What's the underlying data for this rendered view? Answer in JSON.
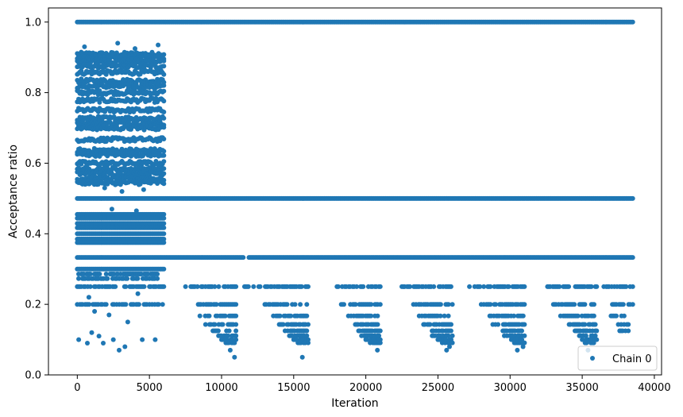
{
  "chart_data": {
    "type": "scatter",
    "title": "",
    "xlabel": "Iteration",
    "ylabel": "Acceptance ratio",
    "xlim": [
      -2000,
      40500
    ],
    "ylim": [
      0.0,
      1.04
    ],
    "xticks": [
      0,
      5000,
      10000,
      15000,
      20000,
      25000,
      30000,
      35000,
      40000
    ],
    "xtick_labels": [
      "0",
      "5000",
      "10000",
      "15000",
      "20000",
      "25000",
      "30000",
      "35000",
      "40000"
    ],
    "yticks": [
      0.0,
      0.2,
      0.4,
      0.6,
      0.8,
      1.0
    ],
    "ytick_labels": [
      "0.0",
      "0.2",
      "0.4",
      "0.6",
      "0.8",
      "1.0"
    ],
    "grid": false,
    "legend": {
      "placement": "lower-right",
      "entries": [
        "Chain 0"
      ]
    },
    "series_color": "#1f77b4",
    "series": [
      {
        "name": "Chain 0",
        "marker": "o",
        "bands": [
          {
            "y": 1.0,
            "x_ranges": [
              [
                0,
                38500
              ]
            ]
          },
          {
            "y": 0.909,
            "x_ranges": [
              [
                0,
                6000
              ]
            ]
          },
          {
            "y": 0.9,
            "x_ranges": [
              [
                0,
                6000
              ]
            ]
          },
          {
            "y": 0.889,
            "x_ranges": [
              [
                0,
                6000
              ]
            ]
          },
          {
            "y": 0.875,
            "x_ranges": [
              [
                0,
                6000
              ]
            ]
          },
          {
            "y": 0.857,
            "x_ranges": [
              [
                0,
                6000
              ]
            ]
          },
          {
            "y": 0.833,
            "x_ranges": [
              [
                0,
                6000
              ]
            ]
          },
          {
            "y": 0.818,
            "x_ranges": [
              [
                0,
                6000
              ]
            ]
          },
          {
            "y": 0.8,
            "x_ranges": [
              [
                0,
                6000
              ]
            ]
          },
          {
            "y": 0.778,
            "x_ranges": [
              [
                0,
                6000
              ]
            ]
          },
          {
            "y": 0.75,
            "x_ranges": [
              [
                0,
                6000
              ]
            ]
          },
          {
            "y": 0.727,
            "x_ranges": [
              [
                0,
                6000
              ]
            ]
          },
          {
            "y": 0.714,
            "x_ranges": [
              [
                0,
                6000
              ]
            ]
          },
          {
            "y": 0.7,
            "x_ranges": [
              [
                0,
                6000
              ]
            ]
          },
          {
            "y": 0.667,
            "x_ranges": [
              [
                0,
                6000
              ]
            ]
          },
          {
            "y": 0.636,
            "x_ranges": [
              [
                0,
                6000
              ]
            ]
          },
          {
            "y": 0.625,
            "x_ranges": [
              [
                0,
                6000
              ]
            ]
          },
          {
            "y": 0.6,
            "x_ranges": [
              [
                0,
                6000
              ]
            ]
          },
          {
            "y": 0.583,
            "x_ranges": [
              [
                0,
                6000
              ]
            ]
          },
          {
            "y": 0.571,
            "x_ranges": [
              [
                0,
                6000
              ]
            ]
          },
          {
            "y": 0.556,
            "x_ranges": [
              [
                0,
                6000
              ]
            ]
          },
          {
            "y": 0.545,
            "x_ranges": [
              [
                0,
                6000
              ]
            ]
          },
          {
            "y": 0.5,
            "x_ranges": [
              [
                0,
                38500
              ]
            ]
          },
          {
            "y": 0.455,
            "x_ranges": [
              [
                0,
                6000
              ]
            ]
          },
          {
            "y": 0.444,
            "x_ranges": [
              [
                0,
                6000
              ]
            ]
          },
          {
            "y": 0.429,
            "x_ranges": [
              [
                0,
                6000
              ]
            ]
          },
          {
            "y": 0.417,
            "x_ranges": [
              [
                0,
                6000
              ]
            ]
          },
          {
            "y": 0.4,
            "x_ranges": [
              [
                0,
                6000
              ]
            ]
          },
          {
            "y": 0.385,
            "x_ranges": [
              [
                0,
                6000
              ]
            ]
          },
          {
            "y": 0.375,
            "x_ranges": [
              [
                0,
                6000
              ]
            ]
          },
          {
            "y": 0.333,
            "x_ranges": [
              [
                0,
                11500
              ],
              [
                11900,
                38500
              ]
            ]
          },
          {
            "y": 0.3,
            "x_ranges": [
              [
                0,
                6000
              ]
            ]
          },
          {
            "y": 0.286,
            "x_ranges": [
              [
                0,
                6000
              ]
            ]
          },
          {
            "y": 0.273,
            "x_ranges": [
              [
                0,
                6000
              ]
            ]
          },
          {
            "y": 0.25,
            "x_ranges": [
              [
                0,
                6000
              ],
              [
                7500,
                11000
              ],
              [
                11500,
                16000
              ],
              [
                18000,
                21000
              ],
              [
                22500,
                26000
              ],
              [
                27000,
                31000
              ],
              [
                32500,
                36000
              ],
              [
                36500,
                38500
              ]
            ]
          },
          {
            "y": 0.2,
            "x_ranges": [
              [
                0,
                6000
              ],
              [
                8200,
                11000
              ],
              [
                13000,
                16000
              ],
              [
                18300,
                21000
              ],
              [
                23300,
                26000
              ],
              [
                28000,
                31000
              ],
              [
                33000,
                36000
              ],
              [
                37000,
                38500
              ]
            ]
          },
          {
            "y": 0.167,
            "x_ranges": [
              [
                8500,
                11000
              ],
              [
                13500,
                16000
              ],
              [
                18700,
                21000
              ],
              [
                23700,
                26000
              ],
              [
                28500,
                31000
              ],
              [
                33500,
                36000
              ],
              [
                37000,
                38000
              ]
            ]
          },
          {
            "y": 0.143,
            "x_ranges": [
              [
                8800,
                11000
              ],
              [
                14000,
                16000
              ],
              [
                19000,
                21000
              ],
              [
                24000,
                26000
              ],
              [
                28800,
                31000
              ],
              [
                34000,
                36000
              ],
              [
                37500,
                38200
              ]
            ]
          },
          {
            "y": 0.125,
            "x_ranges": [
              [
                9400,
                11000
              ],
              [
                14400,
                16000
              ],
              [
                19500,
                21000
              ],
              [
                24500,
                26000
              ],
              [
                29500,
                31000
              ],
              [
                34500,
                36000
              ],
              [
                37500,
                38300
              ]
            ]
          },
          {
            "y": 0.111,
            "x_ranges": [
              [
                9700,
                11000
              ],
              [
                14700,
                16000
              ],
              [
                19700,
                21000
              ],
              [
                24600,
                26000
              ],
              [
                29600,
                31000
              ],
              [
                34800,
                36000
              ]
            ]
          },
          {
            "y": 0.1,
            "x_ranges": [
              [
                10000,
                11000
              ],
              [
                15000,
                16000
              ],
              [
                20000,
                21000
              ],
              [
                25000,
                26000
              ],
              [
                30000,
                31000
              ],
              [
                35000,
                36000
              ]
            ]
          },
          {
            "y": 0.091,
            "x_ranges": [
              [
                10200,
                11000
              ],
              [
                15300,
                16000
              ],
              [
                20300,
                21000
              ],
              [
                25200,
                26000
              ],
              [
                30200,
                31000
              ],
              [
                35200,
                35900
              ]
            ]
          }
        ],
        "points": [
          [
            100,
            0.1
          ],
          [
            700,
            0.09
          ],
          [
            1000,
            0.12
          ],
          [
            1500,
            0.11
          ],
          [
            1800,
            0.09
          ],
          [
            2500,
            0.1
          ],
          [
            2900,
            0.07
          ],
          [
            3300,
            0.08
          ],
          [
            4500,
            0.1
          ],
          [
            5400,
            0.1
          ],
          [
            800,
            0.22
          ],
          [
            1200,
            0.18
          ],
          [
            2200,
            0.17
          ],
          [
            3500,
            0.15
          ],
          [
            4200,
            0.23
          ],
          [
            500,
            0.93
          ],
          [
            2800,
            0.94
          ],
          [
            4000,
            0.925
          ],
          [
            5600,
            0.935
          ],
          [
            3100,
            0.52
          ],
          [
            4600,
            0.525
          ],
          [
            1900,
            0.53
          ],
          [
            2400,
            0.47
          ],
          [
            4100,
            0.465
          ],
          [
            10900,
            0.05
          ],
          [
            15600,
            0.05
          ],
          [
            20800,
            0.07
          ],
          [
            25600,
            0.07
          ],
          [
            30500,
            0.07
          ],
          [
            35400,
            0.07
          ],
          [
            10600,
            0.07
          ],
          [
            30900,
            0.08
          ],
          [
            25800,
            0.08
          ]
        ]
      }
    ]
  }
}
